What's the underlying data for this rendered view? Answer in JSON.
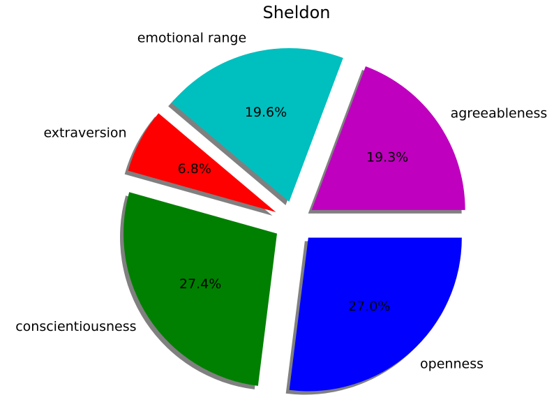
{
  "chart_data": {
    "type": "pie",
    "title": "Sheldon",
    "slices": [
      {
        "label": "agreeableness",
        "value": 19.3,
        "pct_label": "19.3%",
        "color": "#bf00bf"
      },
      {
        "label": "emotional range",
        "value": 19.6,
        "pct_label": "19.6%",
        "color": "#00bfbf"
      },
      {
        "label": "extraversion",
        "value": 6.8,
        "pct_label": "6.8%",
        "color": "#ff0000"
      },
      {
        "label": "conscientiousness",
        "value": 27.4,
        "pct_label": "27.4%",
        "color": "#008000"
      },
      {
        "label": "openness",
        "value": 27.0,
        "pct_label": "27.0%",
        "color": "#0000ff"
      }
    ],
    "start_angle_deg": 0,
    "direction": "counterclockwise",
    "exploded": true,
    "shadow": true,
    "shadow_color": "#808080"
  }
}
